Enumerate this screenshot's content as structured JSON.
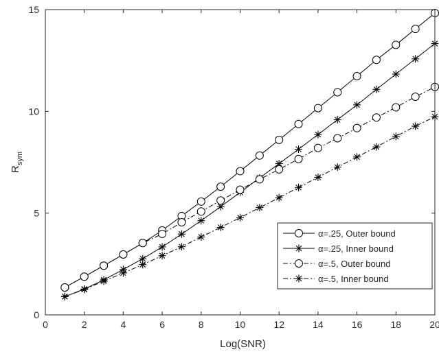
{
  "chart_data": {
    "type": "line",
    "title": "",
    "xlabel": "Log(SNR)",
    "ylabel": {
      "base": "R",
      "subscript": "sym"
    },
    "xlim": [
      0,
      20
    ],
    "ylim": [
      0,
      15
    ],
    "x_ticks": [
      0,
      2,
      4,
      6,
      8,
      10,
      12,
      14,
      16,
      18,
      20
    ],
    "y_ticks": [
      0,
      5,
      10,
      15
    ],
    "grid": false,
    "legend_position": "lower-right",
    "x": [
      1,
      2,
      3,
      4,
      5,
      6,
      7,
      8,
      9,
      10,
      11,
      12,
      13,
      14,
      15,
      16,
      17,
      18,
      19,
      20
    ],
    "series": [
      {
        "name": "α=.25, Outer bound",
        "name_prefix": "α",
        "name_suffix": "=.25, Outer bound",
        "marker": "circle",
        "line_style": "solid",
        "values": [
          1.35,
          1.88,
          2.42,
          2.97,
          3.53,
          4.15,
          4.86,
          5.57,
          6.3,
          7.06,
          7.83,
          8.6,
          9.38,
          10.16,
          10.94,
          11.73,
          12.53,
          13.27,
          14.05,
          14.83
        ]
      },
      {
        "name": "α=.25, Inner bound",
        "name_prefix": "α",
        "name_suffix": "=.25, Inner bound",
        "marker": "asterisk",
        "line_style": "solid",
        "values": [
          0.9,
          1.27,
          1.72,
          2.23,
          2.76,
          3.34,
          3.97,
          4.63,
          5.32,
          6.02,
          6.73,
          7.43,
          8.14,
          8.86,
          9.59,
          10.32,
          11.08,
          11.83,
          12.58,
          13.33
        ]
      },
      {
        "name": "α=.5, Outer bound",
        "name_prefix": "α",
        "name_suffix": "=.5, Outer bound",
        "marker": "circle",
        "line_style": "dashdot",
        "values": [
          1.35,
          1.88,
          2.42,
          2.97,
          3.53,
          3.98,
          4.55,
          5.08,
          5.62,
          6.15,
          6.66,
          7.15,
          7.66,
          8.2,
          8.68,
          9.18,
          9.7,
          10.2,
          10.72,
          11.2
        ]
      },
      {
        "name": "α=.5, Inner bound",
        "name_prefix": "α",
        "name_suffix": "=.5, Inner bound",
        "marker": "asterisk",
        "line_style": "dashdot",
        "values": [
          0.9,
          1.25,
          1.66,
          2.06,
          2.47,
          2.91,
          3.35,
          3.83,
          4.3,
          4.78,
          5.27,
          5.76,
          6.26,
          6.76,
          7.26,
          7.76,
          8.25,
          8.77,
          9.27,
          9.74
        ]
      }
    ]
  }
}
